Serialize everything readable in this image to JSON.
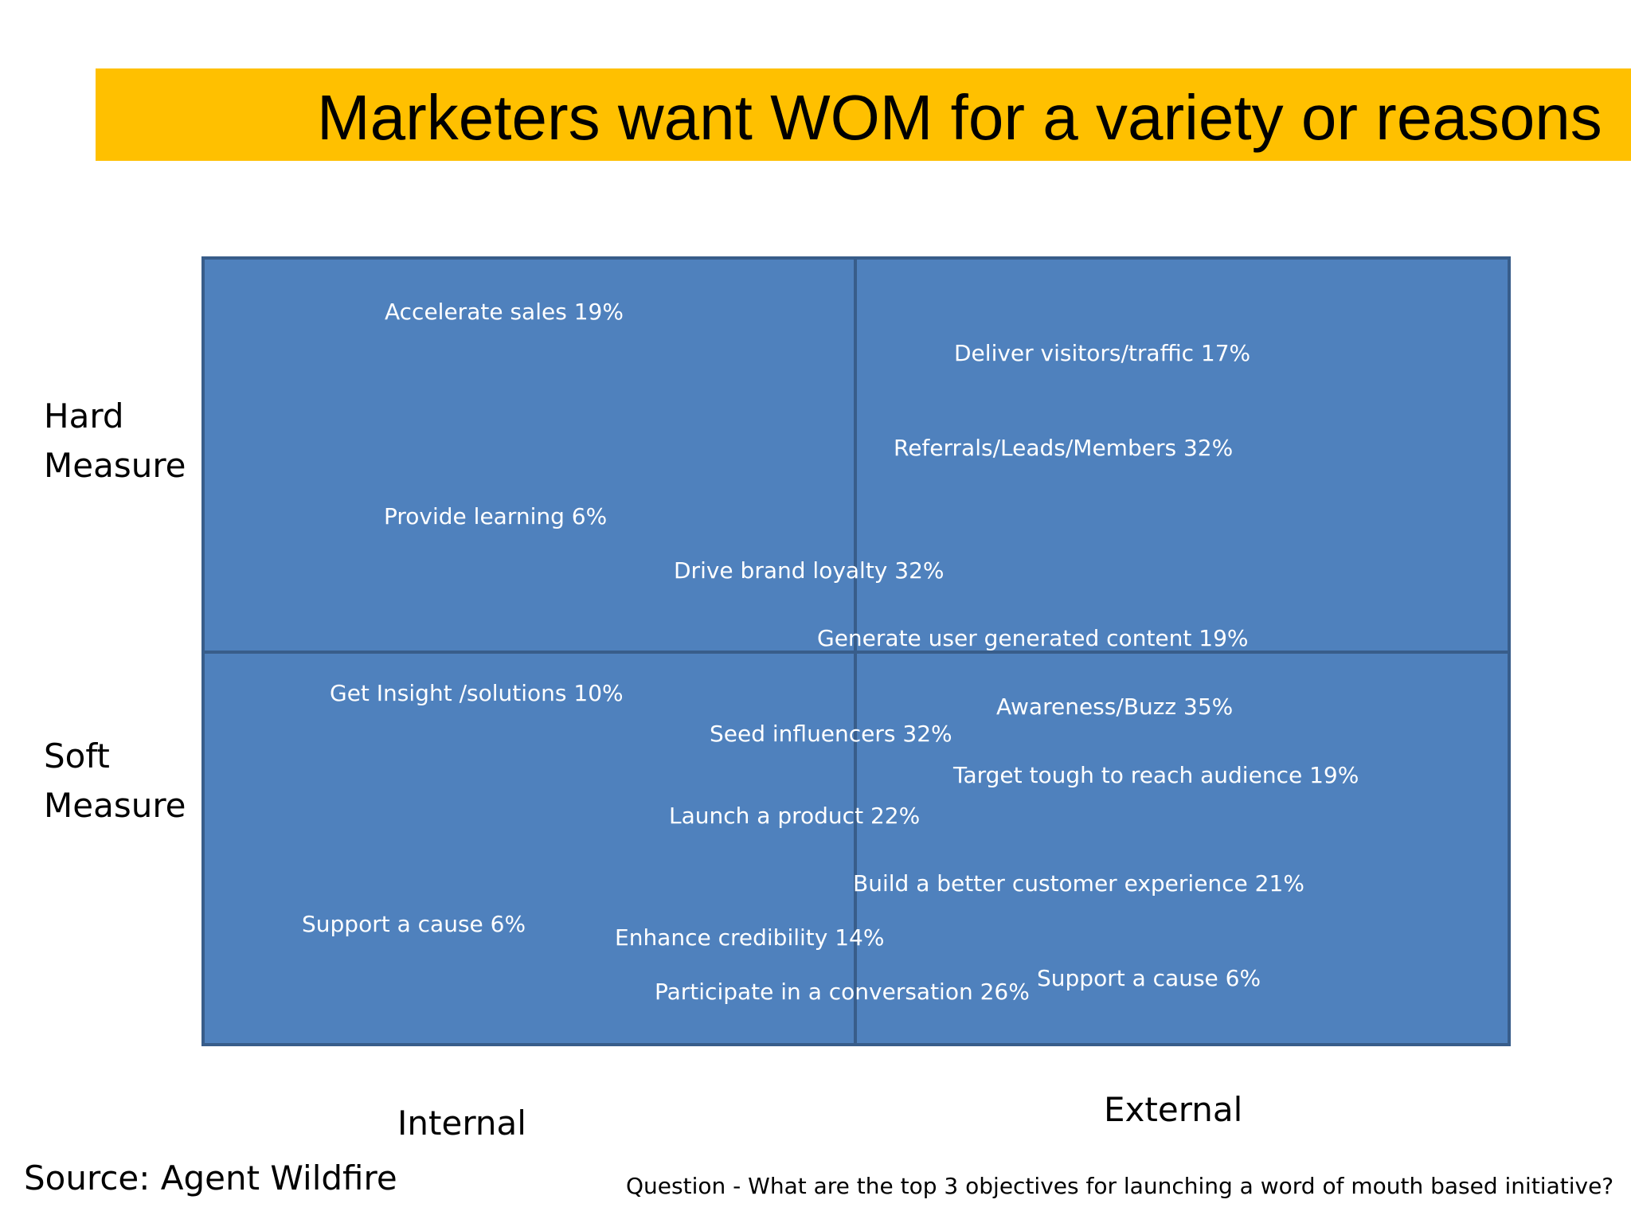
{
  "title": "Marketers want WOM for a variety or reasons",
  "axes": {
    "top_row": [
      "Hard",
      "Measure"
    ],
    "bottom_row": [
      "Soft",
      "Measure"
    ],
    "left_column": "Internal",
    "right_column": "External"
  },
  "objectives": [
    "Accelerate sales 19%",
    "Deliver visitors/traffic  17%",
    "Referrals/Leads/Members 32%",
    "Provide learning 6%",
    "Drive brand loyalty 32%",
    "Generate user generated content  19%",
    "Get Insight /solutions 10%",
    "Awareness/Buzz 35%",
    "Seed influencers 32%",
    "Target tough to reach audience 19%",
    "Launch a product 22%",
    "Build a better customer experience 21%",
    "Support a cause 6%",
    "Enhance credibility 14%",
    "Support a cause 6%",
    "Participate in a conversation 26%"
  ],
  "source": "Source: Agent Wildfire",
  "question": "Question - What are the top 3 objectives for launching a word of mouth based initiative?",
  "colors": {
    "banner": "#FFC000",
    "matrix_fill": "#4F81BD",
    "matrix_border": "#385D8A"
  }
}
